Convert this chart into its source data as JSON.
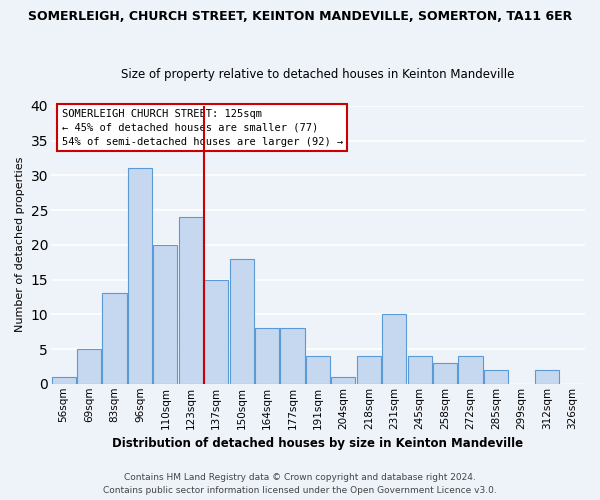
{
  "title": "SOMERLEIGH, CHURCH STREET, KEINTON MANDEVILLE, SOMERTON, TA11 6ER",
  "subtitle": "Size of property relative to detached houses in Keinton Mandeville",
  "xlabel": "Distribution of detached houses by size in Keinton Mandeville",
  "ylabel": "Number of detached properties",
  "categories": [
    "56sqm",
    "69sqm",
    "83sqm",
    "96sqm",
    "110sqm",
    "123sqm",
    "137sqm",
    "150sqm",
    "164sqm",
    "177sqm",
    "191sqm",
    "204sqm",
    "218sqm",
    "231sqm",
    "245sqm",
    "258sqm",
    "272sqm",
    "285sqm",
    "299sqm",
    "312sqm",
    "326sqm"
  ],
  "values": [
    1,
    5,
    13,
    31,
    20,
    24,
    15,
    18,
    8,
    8,
    4,
    1,
    4,
    10,
    4,
    3,
    4,
    2,
    0,
    2,
    0
  ],
  "bar_color": "#c5d8f0",
  "bar_edge_color": "#5b9bd5",
  "vline_color": "#cc0000",
  "vline_x": 5.5,
  "ylim": [
    0,
    40
  ],
  "yticks": [
    0,
    5,
    10,
    15,
    20,
    25,
    30,
    35,
    40
  ],
  "annotation_title": "SOMERLEIGH CHURCH STREET: 125sqm",
  "annotation_line1": "← 45% of detached houses are smaller (77)",
  "annotation_line2": "54% of semi-detached houses are larger (92) →",
  "annotation_box_color": "#ffffff",
  "annotation_box_edge": "#cc0000",
  "footer1": "Contains HM Land Registry data © Crown copyright and database right 2024.",
  "footer2": "Contains public sector information licensed under the Open Government Licence v3.0.",
  "bg_color": "#eef2f9",
  "grid_color": "#ffffff",
  "title_fontsize": 9,
  "subtitle_fontsize": 8.5,
  "xlabel_fontsize": 8.5,
  "ylabel_fontsize": 8,
  "tick_fontsize": 7.5,
  "annotation_fontsize": 7.5,
  "footer_fontsize": 6.5
}
